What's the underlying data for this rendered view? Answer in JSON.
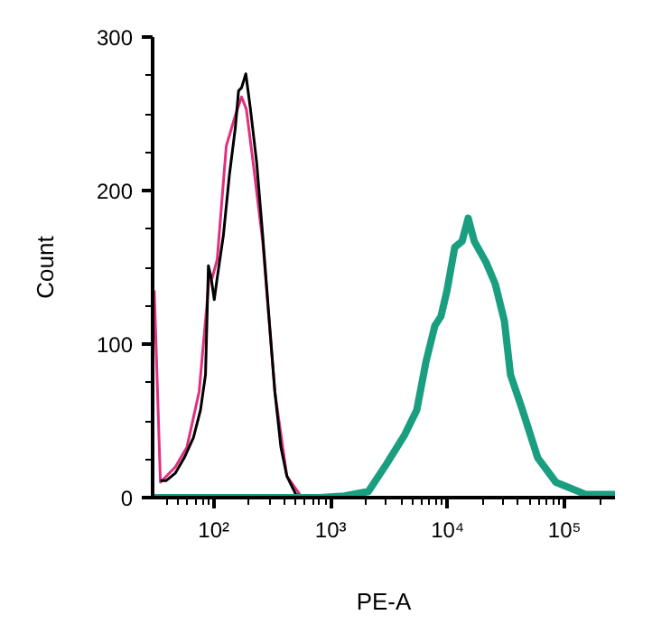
{
  "chart_data": {
    "type": "line",
    "xlabel": "PE-A",
    "ylabel": "Count",
    "log": "x",
    "grid": false,
    "marker": "none",
    "line_style": "solid",
    "xlim": [
      30,
      270000
    ],
    "ylim": [
      0,
      300
    ],
    "xticks": [
      {
        "value": 40,
        "label": null
      },
      {
        "value": 50,
        "label": null
      },
      {
        "value": 60,
        "label": null
      },
      {
        "value": 70,
        "label": null
      },
      {
        "value": 80,
        "label": null
      },
      {
        "value": 90,
        "label": null
      },
      {
        "value": 100,
        "label": "10²"
      },
      {
        "value": 200,
        "label": null
      },
      {
        "value": 300,
        "label": null
      },
      {
        "value": 400,
        "label": null
      },
      {
        "value": 500,
        "label": null
      },
      {
        "value": 600,
        "label": null
      },
      {
        "value": 700,
        "label": null
      },
      {
        "value": 800,
        "label": null
      },
      {
        "value": 900,
        "label": null
      },
      {
        "value": 1000,
        "label": "10³"
      },
      {
        "value": 2000,
        "label": null
      },
      {
        "value": 3000,
        "label": null
      },
      {
        "value": 4000,
        "label": null
      },
      {
        "value": 5000,
        "label": null
      },
      {
        "value": 6000,
        "label": null
      },
      {
        "value": 7000,
        "label": null
      },
      {
        "value": 8000,
        "label": null
      },
      {
        "value": 9000,
        "label": null
      },
      {
        "value": 10000,
        "label": "10⁴"
      },
      {
        "value": 20000,
        "label": null
      },
      {
        "value": 30000,
        "label": null
      },
      {
        "value": 40000,
        "label": null
      },
      {
        "value": 50000,
        "label": null
      },
      {
        "value": 60000,
        "label": null
      },
      {
        "value": 70000,
        "label": null
      },
      {
        "value": 80000,
        "label": null
      },
      {
        "value": 90000,
        "label": null
      },
      {
        "value": 100000,
        "label": "10⁵"
      },
      {
        "value": 200000,
        "label": null
      }
    ],
    "yticks": [
      0,
      {
        "value": 25,
        "label": null
      },
      {
        "value": 50,
        "label": null
      },
      {
        "value": 75,
        "label": null
      },
      100,
      {
        "value": 125,
        "label": null
      },
      {
        "value": 150,
        "label": null
      },
      {
        "value": 175,
        "label": null
      },
      200,
      {
        "value": 225,
        "label": null
      },
      {
        "value": 250,
        "label": null
      },
      {
        "value": 275,
        "label": null
      },
      300
    ],
    "series": [
      {
        "color": "#e0307f",
        "x": [
          31,
          35,
          47,
          59,
          75,
          87,
          92,
          97,
          107,
          128,
          153,
          173,
          190,
          219,
          262,
          333,
          422,
          569
        ],
        "values": [
          135,
          10,
          20,
          33,
          69,
          124,
          147,
          143,
          155,
          229,
          249,
          261,
          253,
          216,
          167,
          69,
          14,
          0
        ]
      },
      {
        "color": "#000000",
        "x": [
          35,
          39,
          47,
          56,
          67,
          77,
          85,
          90,
          95,
          101,
          107,
          121,
          136,
          153,
          163,
          173,
          188,
          206,
          233,
          262,
          295,
          333,
          375,
          422,
          504,
          640
        ],
        "values": [
          11,
          11,
          16,
          26,
          39,
          57,
          80,
          151,
          143,
          129,
          143,
          171,
          210,
          241,
          265,
          267,
          276,
          253,
          218,
          171,
          120,
          69,
          33,
          14,
          2,
          0
        ]
      },
      {
        "color": "#1a9e80",
        "x": [
          30,
          800,
          1306,
          2100,
          3010,
          4300,
          5450,
          6510,
          7780,
          8770,
          9890,
          11500,
          13300,
          15000,
          16900,
          21400,
          25600,
          30600,
          34500,
          43700,
          58900,
          84300,
          153000,
          270000
        ],
        "values": [
          0,
          0,
          1,
          4,
          22,
          41,
          57,
          88,
          112,
          118,
          135,
          163,
          167,
          182,
          167,
          153,
          139,
          115,
          80,
          57,
          26,
          10,
          2,
          2
        ]
      }
    ]
  }
}
